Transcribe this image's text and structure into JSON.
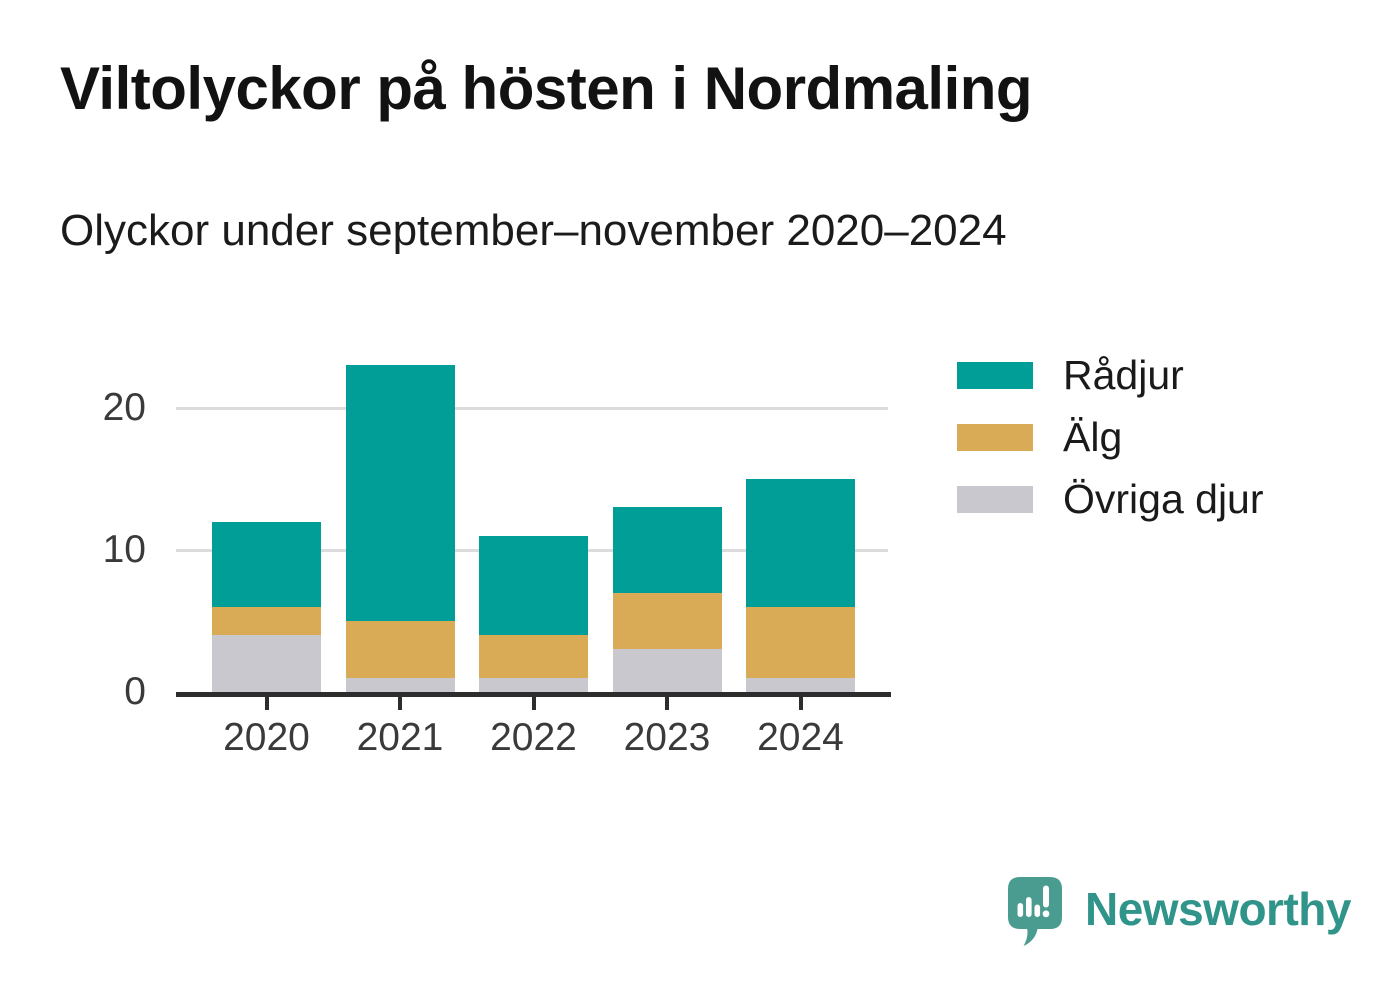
{
  "header": {
    "title": "Viltolyckor på hösten i Nordmaling",
    "subtitle": "Olyckor under september–november 2020–2024"
  },
  "chart_data": {
    "type": "bar",
    "stacked": true,
    "title": "Viltolyckor på hösten i Nordmaling",
    "subtitle": "Olyckor under september–november 2020–2024",
    "categories": [
      "2020",
      "2021",
      "2022",
      "2023",
      "2024"
    ],
    "series": [
      {
        "name": "Rådjur",
        "color": "#009e96",
        "values": [
          6,
          18,
          7,
          6,
          9
        ]
      },
      {
        "name": "Älg",
        "color": "#d9ab56",
        "values": [
          2,
          4,
          3,
          4,
          5
        ]
      },
      {
        "name": "Övriga djur",
        "color": "#c9c8cf",
        "values": [
          4,
          1,
          1,
          3,
          1
        ]
      }
    ],
    "stack_order_bottom_to_top": [
      "Övriga djur",
      "Älg",
      "Rådjur"
    ],
    "totals": [
      12,
      23,
      11,
      13,
      15
    ],
    "yticks": [
      0,
      10,
      20
    ],
    "ylim": [
      0,
      23
    ],
    "grid": "horizontal",
    "grid_color": "#dcdcde",
    "axis_color": "#2d2d2d",
    "tick_label_color": "#3a3a3a",
    "legend_position": "right"
  },
  "legend": {
    "items": [
      {
        "label": "Rådjur",
        "color": "#009e96"
      },
      {
        "label": "Älg",
        "color": "#d9ab56"
      },
      {
        "label": "Övriga djur",
        "color": "#c9c8cf"
      }
    ]
  },
  "branding": {
    "name": "Newsworthy",
    "icon_color": "#4a9b90",
    "text_color": "#30948a"
  }
}
